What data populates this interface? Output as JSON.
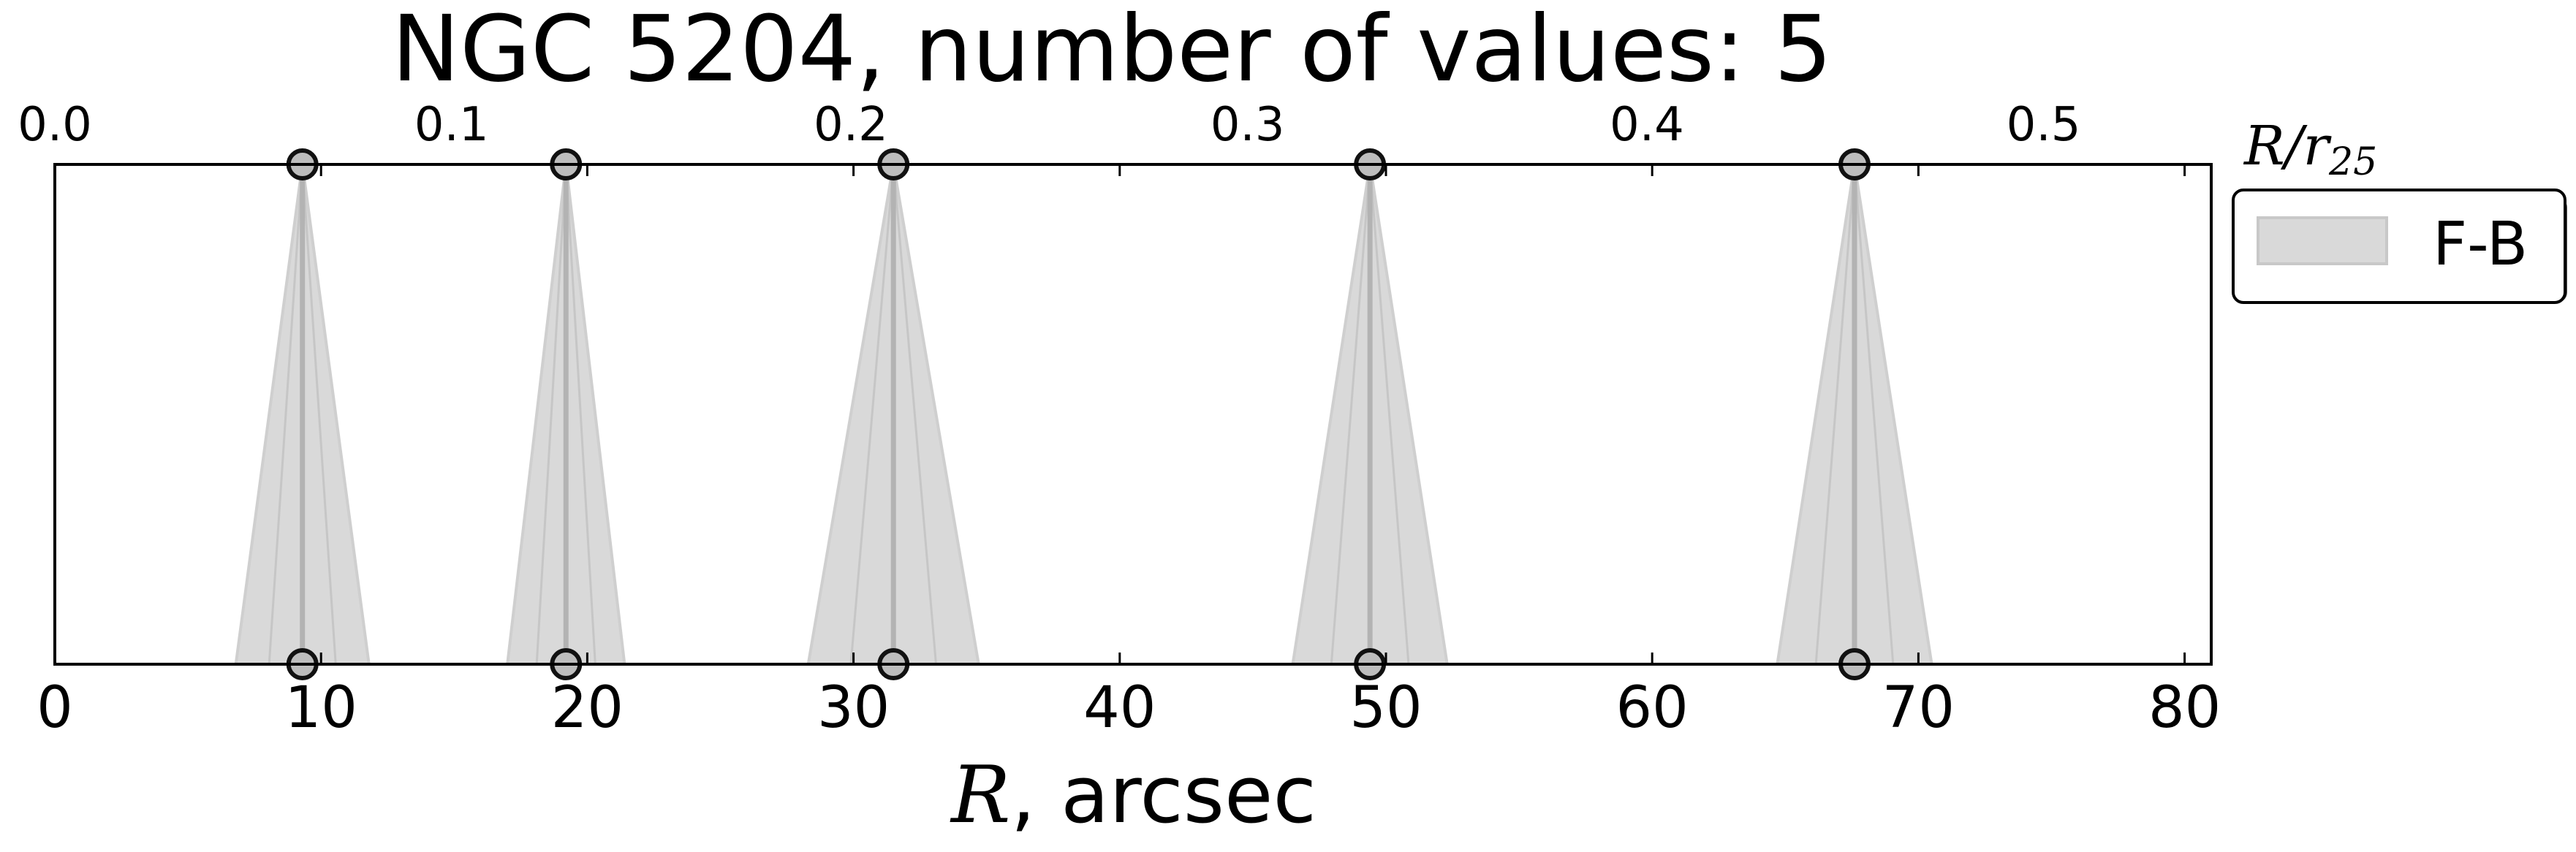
{
  "chart_data": {
    "type": "scatter",
    "title": "NGC 5204, number of values: 5",
    "xlabel_var": "R",
    "xlabel_rest": ", arcsec",
    "xlim": [
      0,
      81
    ],
    "xticks": [
      0,
      10,
      20,
      30,
      40,
      50,
      60,
      70,
      80
    ],
    "top_axis": {
      "label_var": "R/r",
      "label_sub": "25",
      "ticks": [
        "0.0",
        "0.1",
        "0.2",
        "0.3",
        "0.4",
        "0.5"
      ],
      "tick_positions_R": [
        0,
        14.9,
        29.9,
        44.8,
        59.8,
        74.7
      ]
    },
    "grid": false,
    "legend": {
      "position": "outside-right-top",
      "entries": [
        "F-B"
      ]
    },
    "series": [
      {
        "name": "F-B",
        "color": "#d9d9d9",
        "line_color": "#b3b3b3",
        "points": [
          {
            "x": 9.3,
            "halfwidth": 2.5
          },
          {
            "x": 19.2,
            "halfwidth": 2.2
          },
          {
            "x": 31.5,
            "halfwidth": 3.2
          },
          {
            "x": 49.4,
            "halfwidth": 2.9
          },
          {
            "x": 67.6,
            "halfwidth": 2.9
          }
        ]
      }
    ]
  }
}
